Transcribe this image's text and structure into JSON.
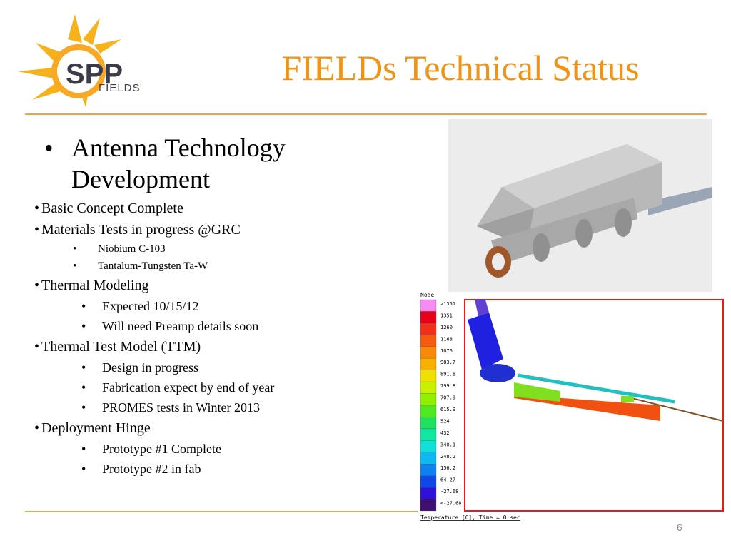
{
  "header": {
    "logo": {
      "main": "SPP",
      "sub": "FIELDS"
    },
    "title": "FIELDs Technical Status"
  },
  "items": [
    {
      "level": 0,
      "text": "Antenna Technology Development"
    },
    {
      "level": 1,
      "text": "Basic Concept Complete"
    },
    {
      "level": 1,
      "text": "Materials Tests in progress @GRC"
    },
    {
      "level": 2,
      "text": "Niobium C-103"
    },
    {
      "level": 2,
      "text": "Tantalum-Tungsten Ta-W"
    },
    {
      "level": 1,
      "text": "Thermal Modeling"
    },
    {
      "level": 3,
      "text": "Expected 10/15/12"
    },
    {
      "level": 3,
      "text": "Will need Preamp details soon"
    },
    {
      "level": 1,
      "text": "Thermal Test Model (TTM)"
    },
    {
      "level": 3,
      "text": "Design in progress"
    },
    {
      "level": 3,
      "text": "Fabrication expect by end of year"
    },
    {
      "level": 3,
      "text": "PROMES tests in Winter 2013"
    },
    {
      "level": 1,
      "text": "Deployment Hinge"
    },
    {
      "level": 3,
      "text": "Prototype #1 Complete"
    },
    {
      "level": 3,
      "text": "Prototype #2 in fab"
    }
  ],
  "thermal": {
    "legend_title": "Node",
    "labels": [
      ">1351",
      "1351",
      "1260",
      "1168",
      "1076",
      "983.7",
      "891.8",
      "799.8",
      "707.9",
      "615.9",
      "524",
      "432",
      "340.1",
      "248.2",
      "156.2",
      "64.27",
      "-27.68",
      "<-27.68"
    ],
    "colors": [
      "#f78cf0",
      "#e8001a",
      "#f0301a",
      "#f55a10",
      "#f88a08",
      "#f8b000",
      "#f0e000",
      "#c8f000",
      "#90f000",
      "#50e820",
      "#20e060",
      "#10e8a0",
      "#10e0d8",
      "#10b8f0",
      "#1080f0",
      "#1048e8",
      "#3010d8",
      "#401070"
    ],
    "caption": "Temperature [C], Time = 0 sec"
  },
  "footer": {
    "page": "6"
  }
}
